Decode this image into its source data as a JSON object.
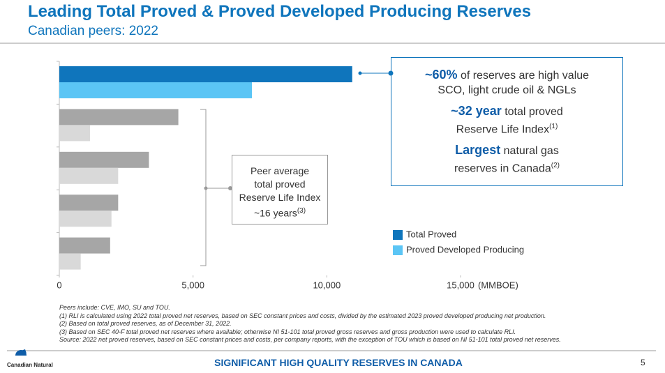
{
  "header": {
    "title": "Leading Total Proved & Proved Developed Producing Reserves",
    "subtitle": "Canadian peers: 2022"
  },
  "chart_data": {
    "type": "hbar",
    "categories": [
      null,
      null,
      null,
      null,
      null
    ],
    "series": [
      {
        "name": "Total Proved",
        "color": "#0f75bc",
        "colors": [
          "#0f75bc",
          "#a6a6a6",
          "#a6a6a6",
          "#a6a6a6",
          "#a6a6a6"
        ],
        "values": [
          10950,
          4450,
          3350,
          2200,
          1900
        ]
      },
      {
        "name": "Proved Developed Producing",
        "color": "#5bc5f5",
        "colors": [
          "#5bc5f5",
          "#d9d9d9",
          "#d9d9d9",
          "#d9d9d9",
          "#d9d9d9"
        ],
        "values": [
          7200,
          1150,
          2200,
          1950,
          800
        ]
      }
    ],
    "xlim": [
      0,
      15000
    ],
    "xticks": [
      0,
      {
        "value": 5000,
        "label": "5,000"
      },
      {
        "value": 10000,
        "label": "10,000"
      },
      {
        "value": 15000,
        "label": "15,000"
      }
    ],
    "x_unit": "(MMBOE)",
    "legend": "right"
  },
  "highlights": [
    {
      "bold": "~60%",
      "text": [
        "of reserves are high value",
        "SCO, light crude oil & NGLs"
      ]
    },
    {
      "bold": "~32 year",
      "text": [
        "total proved",
        "Reserve Life Index"
      ],
      "note": "(1)"
    },
    {
      "bold": "Largest",
      "text": [
        "natural gas",
        "reserves in Canada"
      ],
      "note": "(2)"
    }
  ],
  "peer_box": {
    "lines": [
      "Peer average",
      "total proved",
      "Reserve Life Index",
      "~16 years"
    ],
    "note": "(3)"
  },
  "footnotes": [
    "Peers include: CVE, IMO, SU and TOU.",
    "(1)  RLI is calculated using 2022 total proved net reserves, based on SEC constant prices and costs, divided by the estimated 2023 proved developed producing net production.",
    "(2)  Based on total proved reserves, as of December 31, 2022.",
    "(3)  Based on SEC 40-F total proved net reserves where available; otherwise NI 51-101 total proved gross reserves and gross production were used to calculate RLI.",
    "Source: 2022 net proved reserves, based on SEC constant prices and costs, per company reports, with the exception of TOU which is based on NI 51-101 total proved net reserves."
  ],
  "footer": {
    "logo": "Canadian Natural",
    "text": "SIGNIFICANT HIGH QUALITY RESERVES IN CANADA",
    "page": "5"
  }
}
